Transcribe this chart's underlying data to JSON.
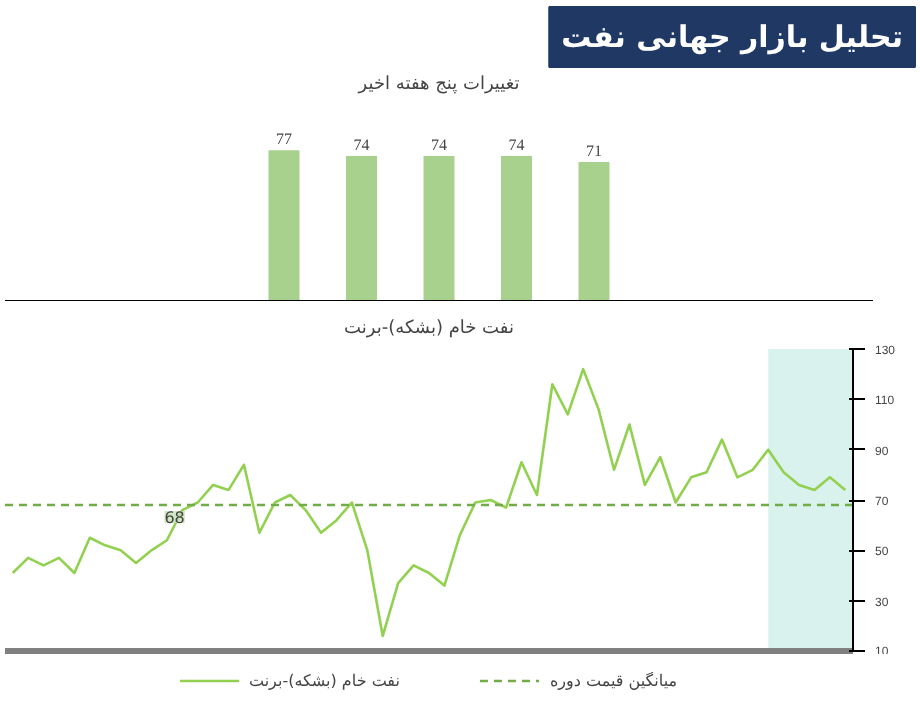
{
  "chart_data": [
    {
      "type": "bar",
      "annotations": [
        "تحلیل بازار جهانی نفت"
      ],
      "title": "تغییرات پنج هفته اخیر",
      "categories": [
        null,
        null,
        null,
        null,
        null
      ],
      "values": [
        77,
        74,
        74,
        74,
        71
      ],
      "color": "#a9d18e",
      "data_labels": true,
      "grid": false
    },
    {
      "type": "line",
      "title": "نفت خام (بشکه)-برنت",
      "categories": [
        null,
        null,
        null,
        null,
        null,
        null,
        null,
        null,
        null,
        null,
        null,
        null,
        null,
        null,
        null,
        null,
        null,
        null,
        null,
        null,
        null,
        null,
        null,
        null,
        null,
        null,
        null,
        null,
        null,
        null,
        null,
        null,
        null,
        null,
        null,
        null,
        null,
        null,
        null,
        null,
        null,
        null,
        null,
        null,
        null,
        null,
        null,
        null,
        null,
        null,
        null,
        null,
        null,
        null,
        null
      ],
      "series": [
        {
          "name": "نفت خام (بشکه)-برنت",
          "color": "#92d050",
          "line_style": "solid",
          "values": [
            41,
            47,
            44,
            47,
            41,
            55,
            52,
            50,
            45,
            50,
            54,
            66,
            69,
            76,
            74,
            84,
            57,
            69,
            72,
            66,
            57,
            62,
            69,
            50,
            16,
            37,
            44,
            41,
            36,
            56,
            69,
            70,
            67,
            85,
            72,
            116,
            104,
            122,
            106,
            82,
            100,
            76,
            87,
            69,
            79,
            81,
            94,
            79,
            82,
            90,
            81,
            76,
            74,
            79,
            74
          ]
        }
      ],
      "ref_lines": [
        {
          "axis": "y",
          "value": 68,
          "label": "میانگین قیمت دوره",
          "color": "#70ad47",
          "line_style": "dashed"
        }
      ],
      "ylim": [
        10,
        130
      ],
      "yticks": [
        10,
        30,
        50,
        70,
        90,
        110,
        130
      ],
      "annotations": [
        "68"
      ],
      "tick_labels": "y",
      "grid": false,
      "legend": "bottom"
    }
  ]
}
